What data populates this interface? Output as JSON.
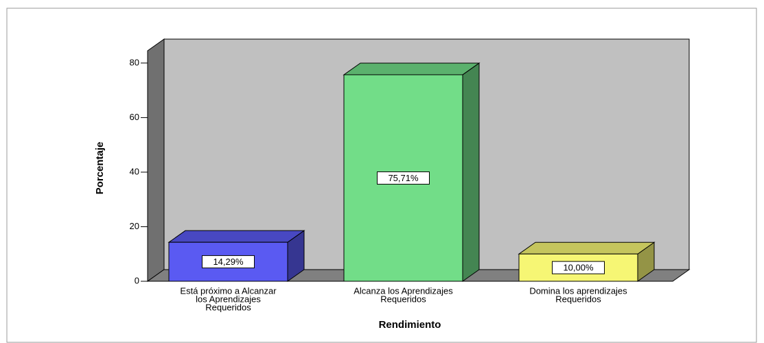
{
  "chart_data": {
    "type": "bar3d",
    "xlabel": "Rendimiento",
    "ylabel": "Porcentaje",
    "categories": [
      [
        "Está próximo a Alcanzar",
        "los Aprendizajes",
        "Requeridos"
      ],
      [
        "Alcanza los Aprendizajes",
        "Requeridos"
      ],
      [
        "Domina los aprendizajes",
        "Requeridos"
      ]
    ],
    "values": [
      14.29,
      75.71,
      10.0
    ],
    "value_labels": [
      "14,29%",
      "75,71%",
      "10,00%"
    ],
    "colors": [
      "#5a5af2",
      "#72dd88",
      "#f6f674"
    ],
    "ylim": [
      0,
      84.5
    ],
    "yticks": [
      0,
      20,
      40,
      60,
      80
    ]
  }
}
